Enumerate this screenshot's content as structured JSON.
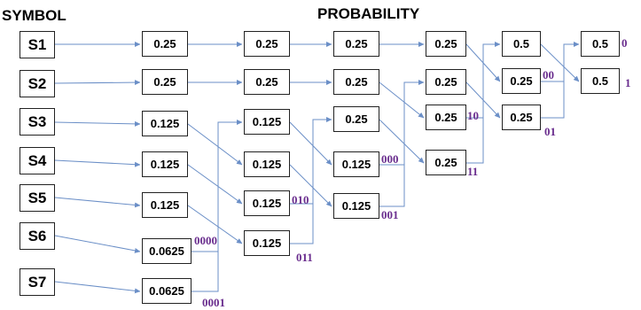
{
  "headers": {
    "symbol": "SYMBOL",
    "probability": "PROBABILITY"
  },
  "symbols": [
    "S1",
    "S2",
    "S3",
    "S4",
    "S5",
    "S6",
    "S7"
  ],
  "stage1": [
    "0.25",
    "0.25",
    "0.125",
    "0.125",
    "0.125",
    "0.0625",
    "0.0625"
  ],
  "stage2": [
    "0.25",
    "0.25",
    "0.125",
    "0.125",
    "0.125",
    "0.125"
  ],
  "stage3": [
    "0.25",
    "0.25",
    "0.25",
    "0.125",
    "0.125"
  ],
  "stage4": [
    "0.25",
    "0.25",
    "0.25",
    "0.25"
  ],
  "stage5": [
    "0.5",
    "0.25",
    "0.25"
  ],
  "stage6": [
    "0.5",
    "0.5"
  ],
  "codes": {
    "s6_code": "0000",
    "s7_code": "0001",
    "stage2_b4": "010",
    "stage2_b5": "011",
    "stage3_b3": "000",
    "stage3_b4": "001",
    "stage4_b2": "10",
    "stage4_b3": "11",
    "stage5_b1": "00",
    "stage5_b2": "01",
    "stage6_b0": "0",
    "stage6_b1": "1"
  },
  "colors": {
    "arrow": "#6b8fc7",
    "code_text": "#6a2e8e",
    "box_border": "#222222"
  }
}
